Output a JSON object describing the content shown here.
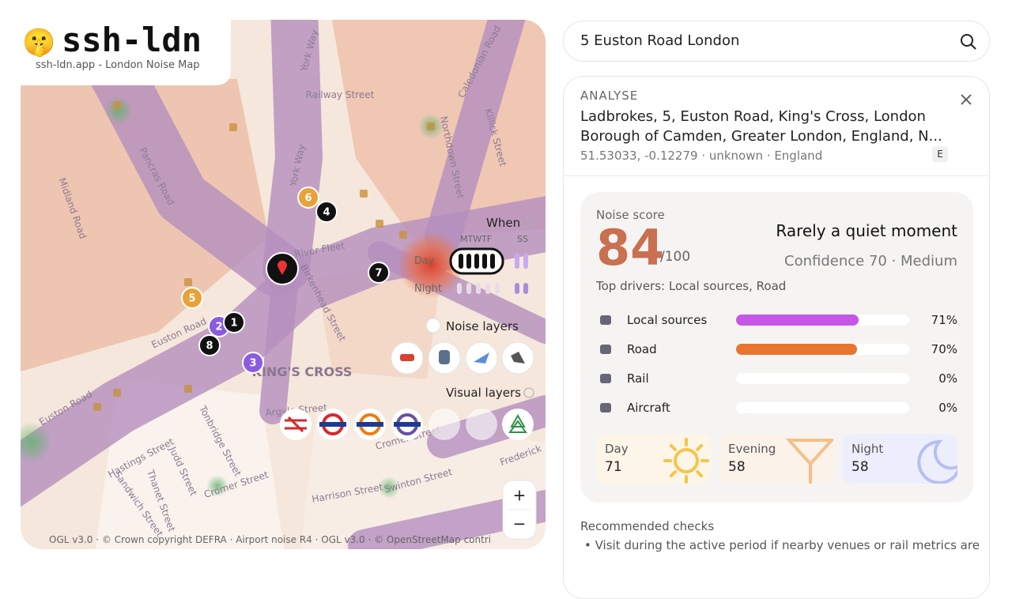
{
  "logo": {
    "icon": "🤫",
    "name": "ssh-ldn",
    "tagline": "ssh-ldn.app - London Noise Map"
  },
  "map": {
    "streets": [
      "Midland Road",
      "Pancras Road",
      "York Way",
      "York Way",
      "Railway Street",
      "River Fleet",
      "Birkenhead Street",
      "Euston Road",
      "KING'S CROSS",
      "Euston Road",
      "Argyle Street",
      "Tonbridge Street",
      "Judd Street",
      "Hastings Street",
      "Cromer Street",
      "Cromer Street",
      "Harrison Street",
      "Swinton Street",
      "Frederick",
      "Sandwich Street",
      "Thanet Street",
      "Northdown Street",
      "Killick Street",
      "Caledonian Road"
    ],
    "markers": [
      6,
      4,
      7,
      5,
      2,
      1,
      8,
      3
    ],
    "when": {
      "title": "When",
      "weekdays": "MTWTF",
      "weekend": "SS",
      "day": "Day",
      "night": "Night"
    },
    "noise_layers": "Noise layers",
    "visual_layers": "Visual layers",
    "zoom_in": "+",
    "zoom_out": "−",
    "attribution": "OGL v3.0 · © Crown copyright DEFRA · Airport noise R4 · OGL v3.0 · © OpenStreetMap contri"
  },
  "search": {
    "query": "5 Euston Road London"
  },
  "analysis": {
    "heading": "ANALYSE",
    "address_line1": "Ladbrokes, 5, Euston Road, King's Cross, London",
    "address_line2": "Borough of Camden, Greater London, England, N...",
    "meta": "51.53033, -0.12279 · unknown · England",
    "badge": "E",
    "score_label": "Noise score",
    "score": 84,
    "score_max": "/100",
    "verdict": "Rarely a quiet moment",
    "confidence": "Confidence 70 · Medium",
    "top_drivers": "Top drivers: Local sources, Road",
    "drivers": [
      {
        "name": "Local sources",
        "value": 71,
        "label": "71%",
        "color": "#c656e6"
      },
      {
        "name": "Road",
        "value": 70,
        "label": "70%",
        "color": "#e8752f"
      },
      {
        "name": "Rail",
        "value": 0,
        "label": "0%",
        "color": "#888888"
      },
      {
        "name": "Aircraft",
        "value": 0,
        "label": "0%",
        "color": "#888888"
      }
    ],
    "periods": [
      {
        "name": "Day",
        "value": 71
      },
      {
        "name": "Evening",
        "value": 58
      },
      {
        "name": "Night",
        "value": 58
      }
    ],
    "checks_title": "Recommended checks",
    "checks": [
      "Visit during the active period if nearby venues or rail metrics are"
    ]
  }
}
